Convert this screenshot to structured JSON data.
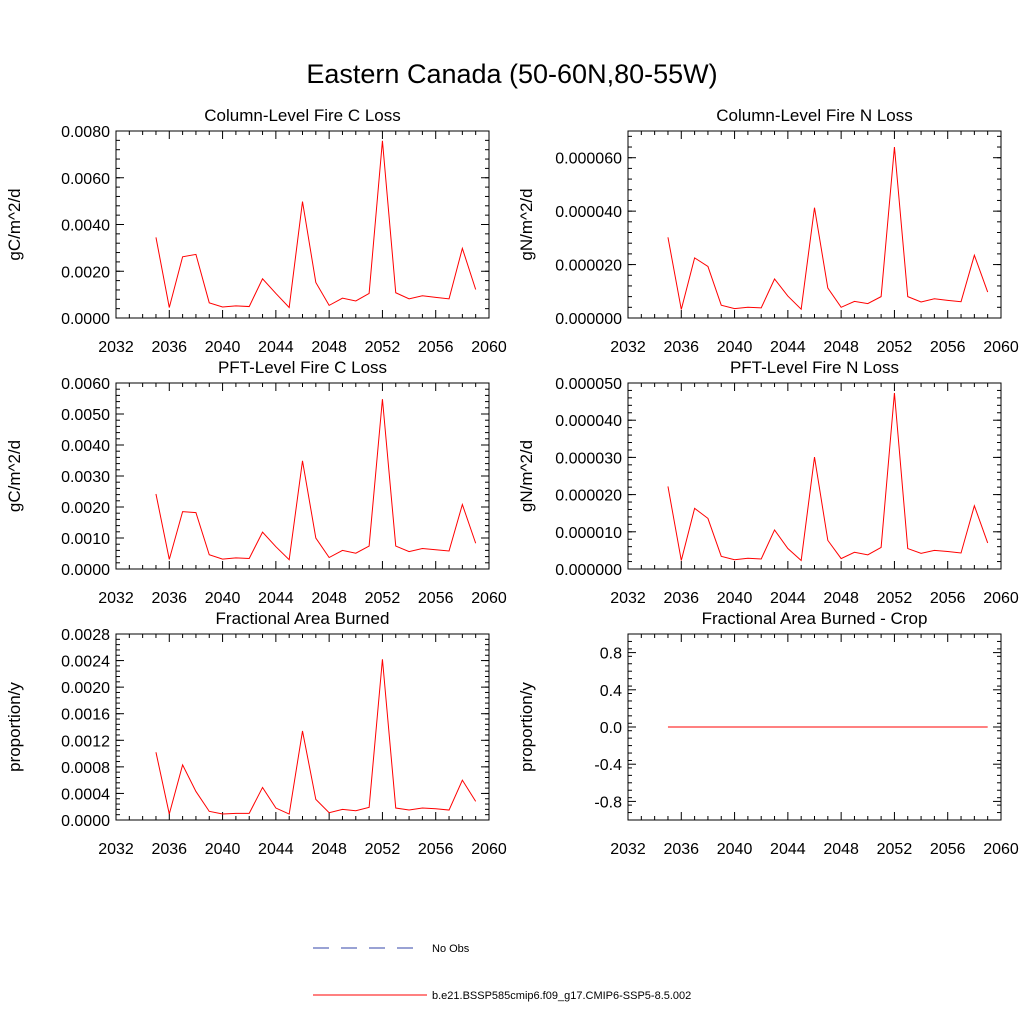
{
  "title": "Eastern Canada (50-60N,80-55W)",
  "legend": {
    "obs_label": "No Obs",
    "obs_color": "#3344aa",
    "model_label": "b.e21.BSSP585cmip6.f09_g17.CMIP6-SSP5-8.5.002",
    "model_color": "#ff0000"
  },
  "chart_data": [
    {
      "type": "line",
      "title": "Column-Level Fire C Loss",
      "ylabel": "gC/m^2/d",
      "xlim": [
        2032,
        2060
      ],
      "ylim": [
        0,
        0.008
      ],
      "xticks": [
        "2032",
        "2036",
        "2040",
        "2044",
        "2048",
        "2052",
        "2056",
        "2060"
      ],
      "yticks": [
        "0.0000",
        "0.0020",
        "0.0040",
        "0.0060",
        "0.0080"
      ],
      "x": [
        2035,
        2036,
        2037,
        2038,
        2039,
        2040,
        2041,
        2042,
        2043,
        2044,
        2045,
        2046,
        2047,
        2048,
        2049,
        2050,
        2051,
        2052,
        2053,
        2054,
        2055,
        2056,
        2057,
        2058,
        2059
      ],
      "series": [
        {
          "values": [
            0.00345,
            0.00045,
            0.00262,
            0.00272,
            0.00065,
            0.00047,
            0.00052,
            0.00049,
            0.00168,
            0.00105,
            0.00045,
            0.00498,
            0.00152,
            0.00054,
            0.00085,
            0.00073,
            0.00105,
            0.00758,
            0.00108,
            0.00082,
            0.00095,
            0.00088,
            0.00082,
            0.00298,
            0.00122
          ]
        }
      ]
    },
    {
      "type": "line",
      "title": "Column-Level Fire N Loss",
      "ylabel": "gN/m^2/d",
      "xlim": [
        2032,
        2060
      ],
      "ylim": [
        0,
        7e-05
      ],
      "xticks": [
        "2032",
        "2036",
        "2040",
        "2044",
        "2048",
        "2052",
        "2056",
        "2060"
      ],
      "yticks": [
        "0.000000",
        "0.000020",
        "0.000040",
        "0.000060"
      ],
      "x": [
        2035,
        2036,
        2037,
        2038,
        2039,
        2040,
        2041,
        2042,
        2043,
        2044,
        2045,
        2046,
        2047,
        2048,
        2049,
        2050,
        2051,
        2052,
        2053,
        2054,
        2055,
        2056,
        2057,
        2058,
        2059
      ],
      "series": [
        {
          "values": [
            3.02e-05,
            3.2e-06,
            2.25e-05,
            1.93e-05,
            4.8e-06,
            3.5e-06,
            4e-06,
            3.8e-06,
            1.46e-05,
            8.2e-06,
            3.3e-06,
            4.13e-05,
            1.12e-05,
            4e-06,
            6.2e-06,
            5.4e-06,
            8e-06,
            6.4e-05,
            8e-06,
            6e-06,
            7.2e-06,
            6.6e-06,
            6.1e-06,
            2.35e-05,
            9.7e-06
          ]
        }
      ]
    },
    {
      "type": "line",
      "title": "PFT-Level Fire C Loss",
      "ylabel": "gC/m^2/d",
      "xlim": [
        2032,
        2060
      ],
      "ylim": [
        0,
        0.006
      ],
      "xticks": [
        "2032",
        "2036",
        "2040",
        "2044",
        "2048",
        "2052",
        "2056",
        "2060"
      ],
      "yticks": [
        "0.0000",
        "0.0010",
        "0.0020",
        "0.0030",
        "0.0040",
        "0.0050",
        "0.0060"
      ],
      "x": [
        2035,
        2036,
        2037,
        2038,
        2039,
        2040,
        2041,
        2042,
        2043,
        2044,
        2045,
        2046,
        2047,
        2048,
        2049,
        2050,
        2051,
        2052,
        2053,
        2054,
        2055,
        2056,
        2057,
        2058,
        2059
      ],
      "series": [
        {
          "values": [
            0.00242,
            0.00031,
            0.00185,
            0.00182,
            0.00046,
            0.00032,
            0.00036,
            0.00034,
            0.00119,
            0.00072,
            0.0003,
            0.00349,
            0.001,
            0.00037,
            0.0006,
            0.00051,
            0.00074,
            0.00548,
            0.00074,
            0.00056,
            0.00066,
            0.00062,
            0.00058,
            0.00208,
            0.00083
          ]
        }
      ]
    },
    {
      "type": "line",
      "title": "PFT-Level Fire N Loss",
      "ylabel": "gN/m^2/d",
      "xlim": [
        2032,
        2060
      ],
      "ylim": [
        0,
        5e-05
      ],
      "xticks": [
        "2032",
        "2036",
        "2040",
        "2044",
        "2048",
        "2052",
        "2056",
        "2060"
      ],
      "yticks": [
        "0.000000",
        "0.000010",
        "0.000020",
        "0.000030",
        "0.000040",
        "0.000050"
      ],
      "x": [
        2035,
        2036,
        2037,
        2038,
        2039,
        2040,
        2041,
        2042,
        2043,
        2044,
        2045,
        2046,
        2047,
        2048,
        2049,
        2050,
        2051,
        2052,
        2053,
        2054,
        2055,
        2056,
        2057,
        2058,
        2059
      ],
      "series": [
        {
          "values": [
            2.22e-05,
            2.3e-06,
            1.63e-05,
            1.36e-05,
            3.4e-06,
            2.5e-06,
            2.9e-06,
            2.7e-06,
            1.05e-05,
            5.5e-06,
            2.3e-06,
            3.01e-05,
            7.7e-06,
            2.8e-06,
            4.5e-06,
            3.8e-06,
            5.8e-06,
            4.73e-05,
            5.5e-06,
            4.2e-06,
            5e-06,
            4.7e-06,
            4.3e-06,
            1.7e-05,
            7e-06
          ]
        }
      ]
    },
    {
      "type": "line",
      "title": "Fractional Area Burned",
      "ylabel": "proportion/y",
      "xlim": [
        2032,
        2060
      ],
      "ylim": [
        0,
        0.0028
      ],
      "xticks": [
        "2032",
        "2036",
        "2040",
        "2044",
        "2048",
        "2052",
        "2056",
        "2060"
      ],
      "yticks": [
        "0.0000",
        "0.0004",
        "0.0008",
        "0.0012",
        "0.0016",
        "0.0020",
        "0.0024",
        "0.0028"
      ],
      "x": [
        2035,
        2036,
        2037,
        2038,
        2039,
        2040,
        2041,
        2042,
        2043,
        2044,
        2045,
        2046,
        2047,
        2048,
        2049,
        2050,
        2051,
        2052,
        2053,
        2054,
        2055,
        2056,
        2057,
        2058,
        2059
      ],
      "series": [
        {
          "values": [
            0.00102,
            9e-05,
            0.00083,
            0.00043,
            0.00013,
            9e-05,
            0.0001,
            0.0001,
            0.00049,
            0.00018,
            9e-05,
            0.00134,
            0.00031,
            0.00011,
            0.00016,
            0.00014,
            0.00019,
            0.00242,
            0.00018,
            0.00015,
            0.00018,
            0.00017,
            0.00015,
            0.0006,
            0.00028
          ]
        }
      ]
    },
    {
      "type": "line",
      "title": "Fractional Area Burned - Crop",
      "ylabel": "proportion/y",
      "xlim": [
        2032,
        2060
      ],
      "ylim": [
        -1.0,
        1.0
      ],
      "xticks": [
        "2032",
        "2036",
        "2040",
        "2044",
        "2048",
        "2052",
        "2056",
        "2060"
      ],
      "yticks": [
        "-0.8",
        "-0.4",
        "0.0",
        "0.4",
        "0.8"
      ],
      "x": [
        2035,
        2036,
        2037,
        2038,
        2039,
        2040,
        2041,
        2042,
        2043,
        2044,
        2045,
        2046,
        2047,
        2048,
        2049,
        2050,
        2051,
        2052,
        2053,
        2054,
        2055,
        2056,
        2057,
        2058,
        2059
      ],
      "series": [
        {
          "values": [
            0,
            0,
            0,
            0,
            0,
            0,
            0,
            0,
            0,
            0,
            0,
            0,
            0,
            0,
            0,
            0,
            0,
            0,
            0,
            0,
            0,
            0,
            0,
            0,
            0
          ]
        }
      ]
    }
  ]
}
